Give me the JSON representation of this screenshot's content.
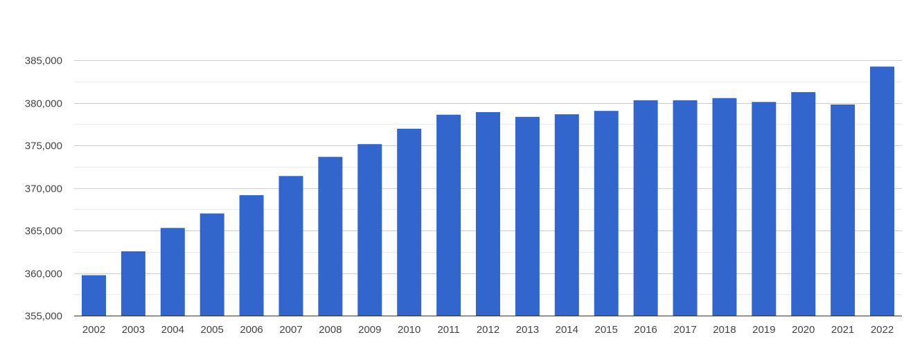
{
  "chart_data": {
    "type": "bar",
    "categories": [
      "2002",
      "2003",
      "2004",
      "2005",
      "2006",
      "2007",
      "2008",
      "2009",
      "2010",
      "2011",
      "2012",
      "2013",
      "2014",
      "2015",
      "2016",
      "2017",
      "2018",
      "2019",
      "2020",
      "2021",
      "2022"
    ],
    "series": [
      {
        "values": [
          359750,
          362550,
          365300,
          367000,
          369150,
          371400,
          373650,
          375150,
          376950,
          378600,
          378900,
          378350,
          378650,
          379050,
          380300,
          380300,
          380550,
          380100,
          381250,
          379800,
          384250
        ]
      }
    ],
    "ylim": [
      355000,
      385000
    ],
    "yticks": [
      355000,
      360000,
      365000,
      370000,
      375000,
      380000,
      385000
    ],
    "ytick_labels": [
      "355,000",
      "360,000",
      "365,000",
      "370,000",
      "375,000",
      "380,000",
      "385,000"
    ],
    "grid": true,
    "legend": "none",
    "bar_color": "#3366cc",
    "grid_color": "#cccccc",
    "minor_grid_color": "#ebebeb",
    "title": "",
    "xlabel": "",
    "ylabel": ""
  }
}
